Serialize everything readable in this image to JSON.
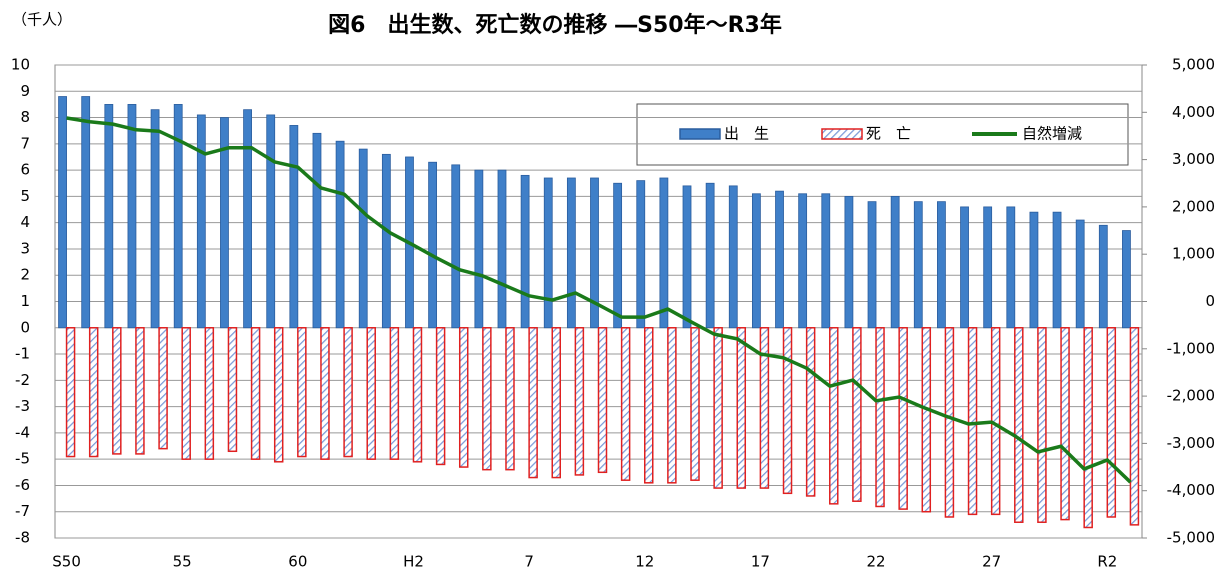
{
  "chart_data": {
    "type": "bar",
    "title": "図6　出生数、死亡数の推移 ―S50年～R3年",
    "y_label": "（千人）",
    "categories": [
      "S50",
      null,
      null,
      null,
      null,
      "55",
      null,
      null,
      null,
      null,
      "60",
      null,
      null,
      null,
      null,
      "H2",
      null,
      null,
      null,
      null,
      "7",
      null,
      null,
      null,
      null,
      "12",
      null,
      null,
      null,
      null,
      "17",
      null,
      null,
      null,
      null,
      "22",
      null,
      null,
      null,
      null,
      "27",
      null,
      null,
      null,
      null,
      "R2",
      null
    ],
    "series": [
      {
        "name": "出　生",
        "color": "#3f7fc8",
        "type": "bar",
        "values": [
          8.8,
          8.8,
          8.5,
          8.5,
          8.3,
          8.5,
          8.1,
          8.0,
          8.3,
          8.1,
          7.7,
          7.4,
          7.1,
          6.8,
          6.6,
          6.5,
          6.3,
          6.2,
          6.0,
          6.0,
          5.8,
          5.7,
          5.7,
          5.7,
          5.5,
          5.6,
          5.7,
          5.4,
          5.5,
          5.4,
          5.1,
          5.2,
          5.1,
          5.1,
          5.0,
          4.8,
          5.0,
          4.8,
          4.8,
          4.6,
          4.6,
          4.6,
          4.4,
          4.4,
          4.1,
          3.9,
          3.7
        ]
      },
      {
        "name": "死　亡",
        "color": "#e02020",
        "type": "bar",
        "values": [
          -4.9,
          -4.9,
          -4.8,
          -4.8,
          -4.6,
          -5.0,
          -5.0,
          -4.7,
          -5.0,
          -5.1,
          -4.9,
          -5.0,
          -4.9,
          -5.0,
          -5.0,
          -5.1,
          -5.2,
          -5.3,
          -5.4,
          -5.4,
          -5.7,
          -5.7,
          -5.6,
          -5.5,
          -5.8,
          -5.9,
          -5.9,
          -5.8,
          -6.1,
          -6.1,
          -6.1,
          -6.3,
          -6.4,
          -6.7,
          -6.6,
          -6.8,
          -6.9,
          -7.0,
          -7.2,
          -7.1,
          -7.1,
          -7.4,
          -7.4,
          -7.3,
          -7.6,
          -7.2,
          -7.5
        ]
      },
      {
        "name": "自然増減",
        "color": "#1a7a1a",
        "type": "line",
        "axis": "y2",
        "values": [
          3880,
          3800,
          3750,
          3630,
          3600,
          3370,
          3120,
          3250,
          3250,
          2950,
          2840,
          2400,
          2270,
          1810,
          1450,
          1190,
          920,
          670,
          540,
          330,
          120,
          30,
          180,
          -70,
          -330,
          -330,
          -160,
          -430,
          -690,
          -790,
          -1110,
          -1190,
          -1410,
          -1790,
          -1660,
          -2100,
          -2020,
          -2230,
          -2420,
          -2590,
          -2550,
          -2840,
          -3180,
          -3060,
          -3540,
          -3350,
          -3820
        ]
      }
    ],
    "ylim": [
      -8,
      10
    ],
    "yticks": [
      -8,
      -7,
      -6,
      -5,
      -4,
      -3,
      -2,
      -1,
      0,
      1,
      2,
      3,
      4,
      5,
      6,
      7,
      8,
      9,
      10
    ],
    "y2lim": [
      -5000,
      5000
    ],
    "y2ticks": [
      {
        "value": -5000,
        "label": "-5,000"
      },
      {
        "value": -4000,
        "label": "-4,000"
      },
      {
        "value": -3000,
        "label": "-3,000"
      },
      {
        "value": -2000,
        "label": "-2,000"
      },
      {
        "value": -1000,
        "label": "-1,000"
      },
      0,
      {
        "value": 1000,
        "label": "1,000"
      },
      {
        "value": 2000,
        "label": "2,000"
      },
      {
        "value": 3000,
        "label": "3,000"
      },
      {
        "value": 4000,
        "label": "4,000"
      },
      {
        "value": 5000,
        "label": "5,000"
      }
    ],
    "grid": true,
    "legend": "top-right"
  }
}
